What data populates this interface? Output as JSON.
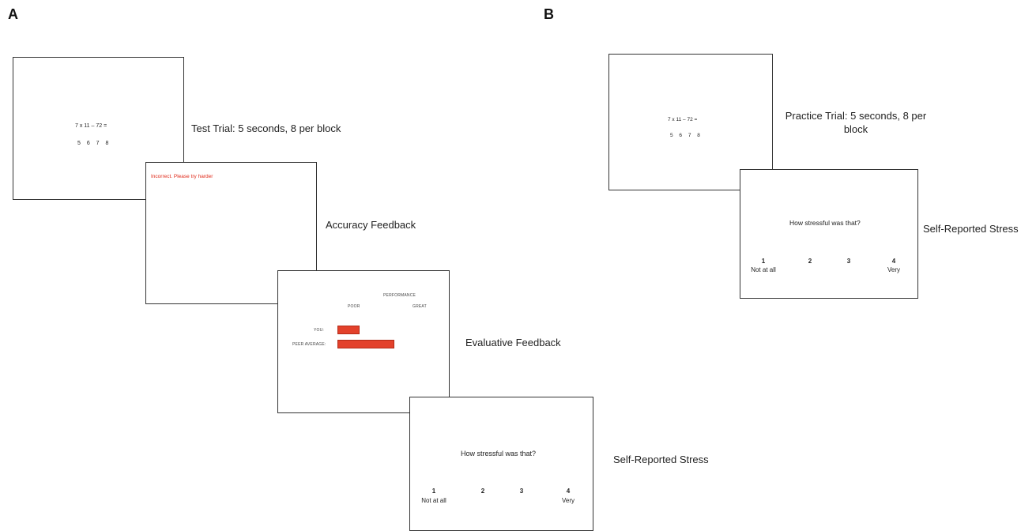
{
  "panels": {
    "a": "A",
    "b": "B"
  },
  "test_trial": {
    "equation": "7 x 11 – 72 =",
    "options": "5 6 7 8",
    "caption": "Test Trial: 5 seconds, 8 per block"
  },
  "accuracy_feedback": {
    "message": "Incorrect. Please try harder",
    "caption": "Accuracy Feedback"
  },
  "evaluative_feedback": {
    "heading": "PERFORMANCE",
    "poor": "POOR",
    "great": "GREAT",
    "you_label": "YOU:",
    "peer_label": "PEER AVERAGE:",
    "you_level": 0.25,
    "peer_level": 0.65,
    "bar_color": "#e3412b",
    "caption": "Evaluative Feedback"
  },
  "stress_a": {
    "question": "How stressful was that?",
    "scale": [
      "1",
      "2",
      "3",
      "4"
    ],
    "low_label": "Not at all",
    "high_label": "Very",
    "caption": "Self-Reported Stress"
  },
  "practice_trial": {
    "equation": "7 x 11 – 72 =",
    "options": "5 6 7 8",
    "caption_line1": "Practice Trial: 5 seconds, 8 per",
    "caption_line2": "block"
  },
  "stress_b": {
    "question": "How stressful was that?",
    "scale": [
      "1",
      "2",
      "3",
      "4"
    ],
    "low_label": "Not at all",
    "high_label": "Very",
    "caption": "Self-Reported Stress"
  }
}
